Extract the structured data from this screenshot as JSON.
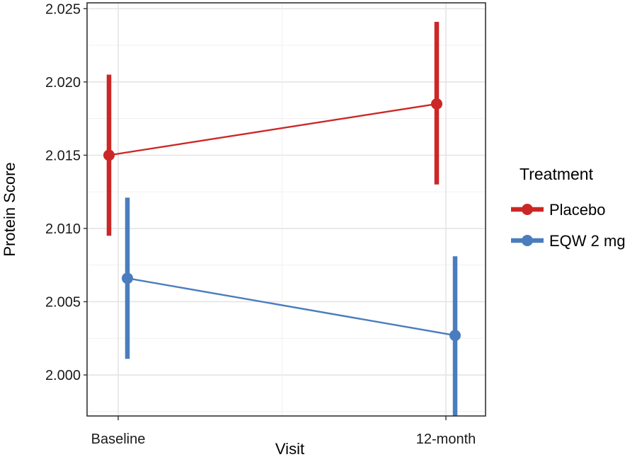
{
  "chart_data": {
    "type": "line",
    "xlabel": "Visit",
    "ylabel": "Protein Score",
    "categories": [
      "Baseline",
      "12-month"
    ],
    "ylim": [
      1.9972,
      2.0254
    ],
    "yticks": [
      2.0,
      2.005,
      2.01,
      2.015,
      2.02,
      2.025
    ],
    "ytick_labels": [
      "2.000",
      "2.005",
      "2.010",
      "2.015",
      "2.020",
      "2.025"
    ],
    "grid": true,
    "legend": {
      "title": "Treatment",
      "placement": "right"
    },
    "series": [
      {
        "name": "Placebo",
        "color": "#cc2727",
        "values": [
          2.015,
          2.0185
        ],
        "lower": [
          2.0095,
          2.013
        ],
        "upper": [
          2.0205,
          2.0241
        ]
      },
      {
        "name": "EQW 2 mg",
        "color": "#4a7dbd",
        "values": [
          2.0066,
          2.0027
        ],
        "lower": [
          2.0011,
          1.9972
        ],
        "upper": [
          2.0121,
          2.0081
        ]
      }
    ]
  }
}
